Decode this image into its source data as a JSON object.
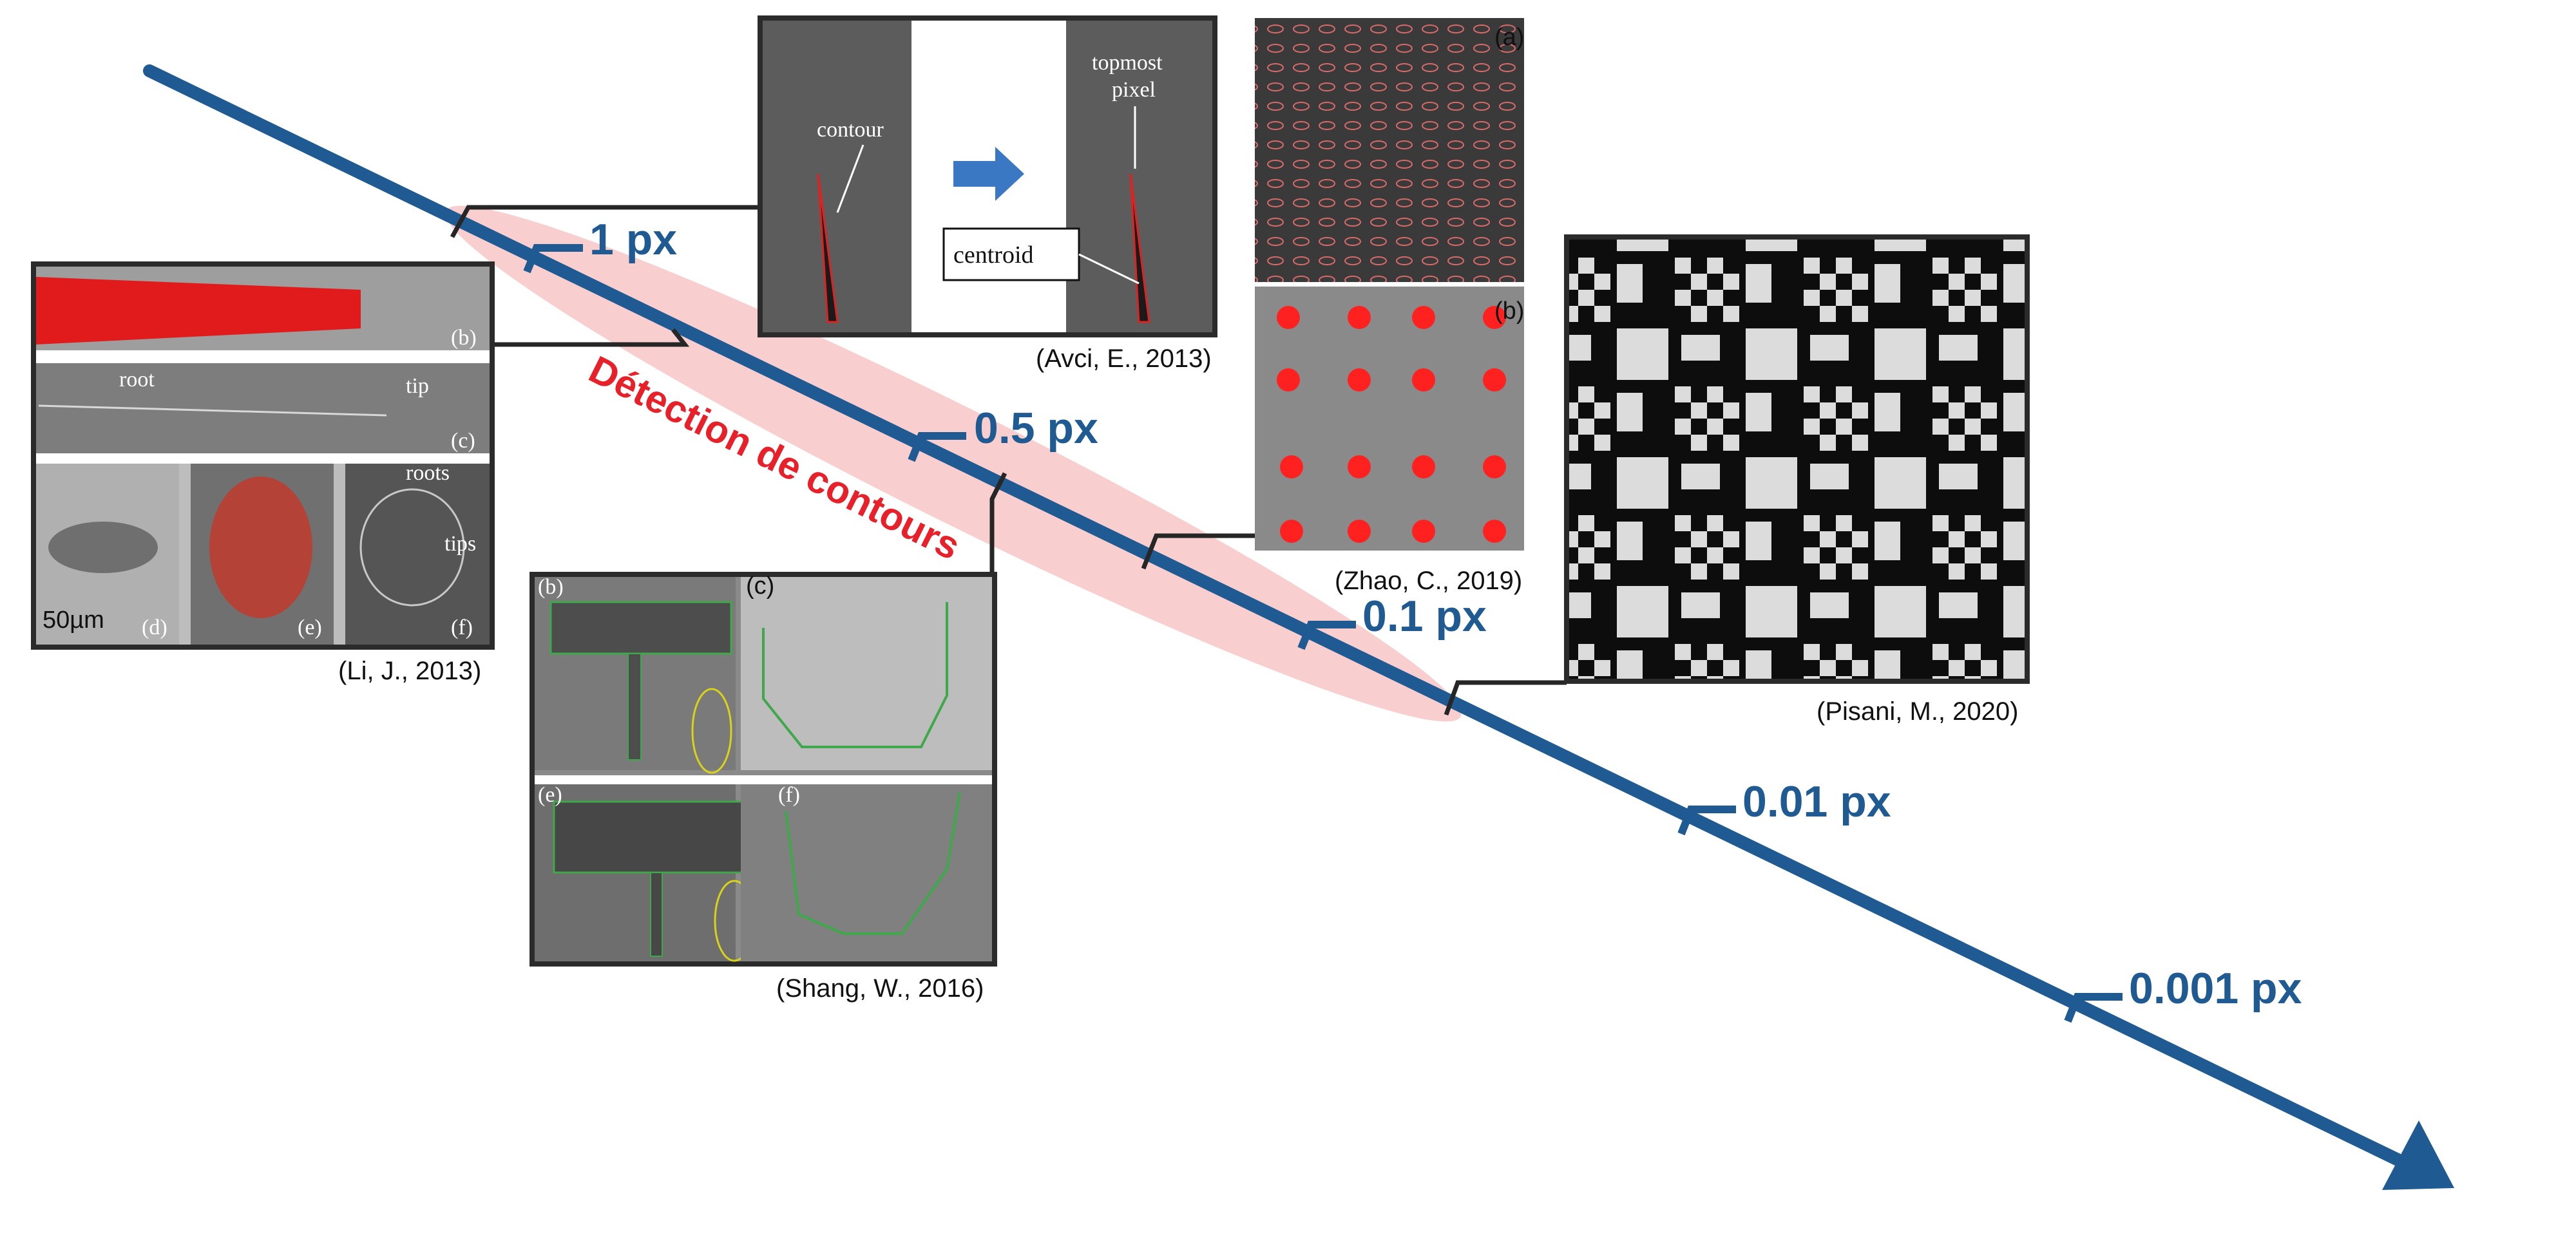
{
  "title": "",
  "band_label": "Détection de contours",
  "ticks": [
    {
      "label": "1 px"
    },
    {
      "label": "0.5 px"
    },
    {
      "label": "0.1 px"
    },
    {
      "label": "0.01 px"
    },
    {
      "label": "0.001 px"
    }
  ],
  "citations": {
    "li": "(Li, J., 2013)",
    "avci": "(Avci, E., 2013)",
    "zhao": "(Zhao, C., 2019)",
    "pisani": "(Pisani, M., 2020)",
    "shang": "(Shang, W., 2016)"
  },
  "avci_inset": {
    "contour": "contour",
    "topmost_line1": "topmost",
    "topmost_line2": "pixel",
    "centroid": "centroid"
  },
  "li_inset": {
    "panel_b": "(b)",
    "panel_c": "(c)",
    "panel_d": "(d)",
    "panel_e": "(e)",
    "panel_f": "(f)",
    "root": "root",
    "tip": "tip",
    "roots": "roots",
    "tips": "tips",
    "scale": "50µm"
  },
  "zhao_inset": {
    "panel_a": "(a)",
    "panel_b": "(b)"
  },
  "shang_inset": {
    "panel_b": "(b)",
    "panel_c": "(c)",
    "panel_e": "(e)",
    "panel_f": "(f)"
  },
  "colors": {
    "arrow": "#1f5a92",
    "band": "#f4a6a6",
    "band_text": "#e8202a",
    "connector": "#262626"
  }
}
